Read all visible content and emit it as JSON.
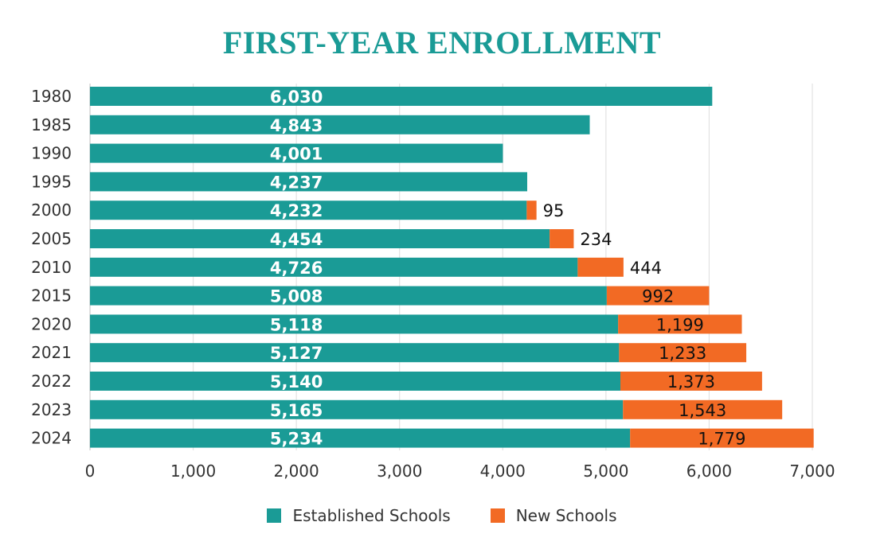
{
  "chart_data": {
    "type": "bar",
    "orientation": "horizontal",
    "stacked": true,
    "title": "FIRST-YEAR ENROLLMENT",
    "categories": [
      "1980",
      "1985",
      "1990",
      "1995",
      "2000",
      "2005",
      "2010",
      "2015",
      "2020",
      "2021",
      "2022",
      "2023",
      "2024"
    ],
    "series": [
      {
        "name": "Established Schools",
        "color": "#1a9b96",
        "values": [
          6030,
          4843,
          4001,
          4237,
          4232,
          4454,
          4726,
          5008,
          5118,
          5127,
          5140,
          5165,
          5234
        ]
      },
      {
        "name": "New Schools",
        "color": "#f26a24",
        "values": [
          0,
          0,
          0,
          0,
          95,
          234,
          444,
          992,
          1199,
          1233,
          1373,
          1543,
          1779
        ]
      }
    ],
    "data_labels": {
      "established": [
        "6,030",
        "4,843",
        "4,001",
        "4,237",
        "4,232",
        "4,454",
        "4,726",
        "5,008",
        "5,118",
        "5,127",
        "5,140",
        "5,165",
        "5,234"
      ],
      "new": [
        "",
        "",
        "",
        "",
        "95",
        "234",
        "444",
        "992",
        "1,199",
        "1,233",
        "1,373",
        "1,543",
        "1,779"
      ]
    },
    "xlim": [
      0,
      7000
    ],
    "xticks": [
      0,
      1000,
      2000,
      3000,
      4000,
      5000,
      6000,
      7000
    ],
    "xtick_labels": [
      "0",
      "1,000",
      "2,000",
      "3,000",
      "4,000",
      "5,000",
      "6,000",
      "7,000"
    ],
    "grid": true,
    "legend_position": "bottom"
  }
}
